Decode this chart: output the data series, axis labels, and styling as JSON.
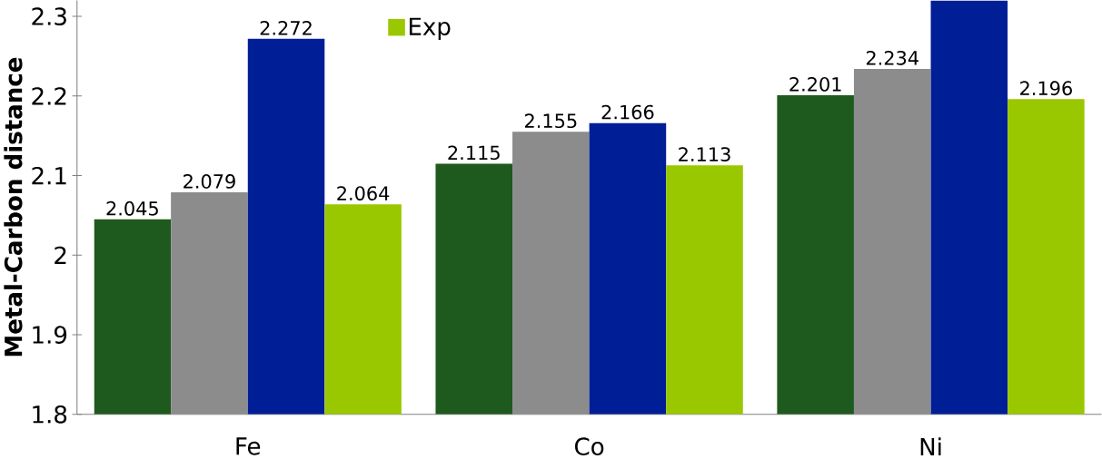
{
  "chart_data": {
    "type": "bar",
    "ylabel": "Metal-Carbon distance",
    "categories": [
      "Fe",
      "Co",
      "Ni"
    ],
    "series": [
      {
        "color": "#1e5a1e",
        "values": [
          2.045,
          2.115,
          2.201
        ],
        "value_labels": [
          "2.045",
          "2.115",
          "2.201"
        ]
      },
      {
        "color": "#8c8c8c",
        "values": [
          2.079,
          2.155,
          2.234
        ],
        "value_labels": [
          "2.079",
          "2.155",
          "2.234"
        ]
      },
      {
        "color": "#001e96",
        "values": [
          2.272,
          2.166,
          2.32
        ],
        "value_labels": [
          "2.272",
          "2.166",
          null
        ]
      },
      {
        "name": "Exp",
        "color": "#99c800",
        "values": [
          2.064,
          2.113,
          2.196
        ],
        "value_labels": [
          "2.064",
          "2.113",
          "2.196"
        ]
      }
    ],
    "ylim": [
      1.8,
      2.32
    ],
    "yticks": [
      1.8,
      1.9,
      2,
      2.1,
      2.2,
      2.3
    ],
    "grid": false,
    "legend": "top"
  }
}
